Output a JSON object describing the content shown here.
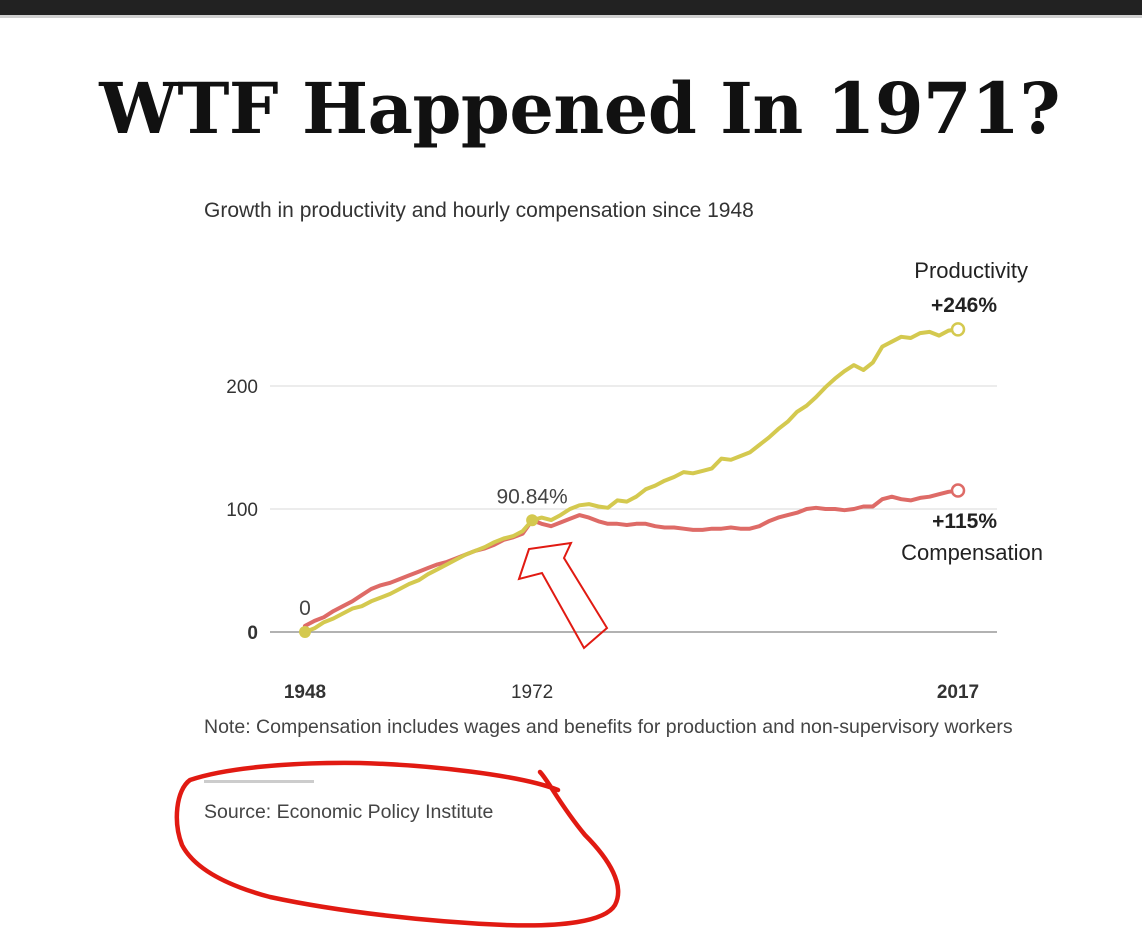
{
  "headline": "WTF Happened In 1971?",
  "note": "Note: Compensation includes wages and benefits for production and non-supervisory workers",
  "source": "Source: Economic Policy Institute",
  "colors": {
    "productivity": "#d4c94f",
    "compensation": "#de6b67",
    "annotation": "#e11a12",
    "gridline": "#d9d9d9",
    "baseline": "#999999"
  },
  "chart_data": {
    "type": "line",
    "title": "Growth in productivity and hourly compensation since 1948",
    "xlim": [
      1948,
      2017
    ],
    "ylim": [
      0,
      250
    ],
    "yticks": [
      {
        "value": 0,
        "label": "0",
        "bold": true
      },
      {
        "value": 100,
        "label": "100",
        "bold": false
      },
      {
        "value": 200,
        "label": "200",
        "bold": false
      }
    ],
    "xticks": [
      {
        "value": 1948,
        "label": "1948",
        "bold": true
      },
      {
        "value": 1972,
        "label": "1972",
        "bold": false
      },
      {
        "value": 2017,
        "label": "2017",
        "bold": true
      }
    ],
    "grid": true,
    "series": [
      {
        "name": "Productivity",
        "end_label": "+246%",
        "color": "#d4c94f",
        "x": [
          1948,
          1949,
          1950,
          1951,
          1952,
          1953,
          1954,
          1955,
          1956,
          1957,
          1958,
          1959,
          1960,
          1961,
          1962,
          1963,
          1964,
          1965,
          1966,
          1967,
          1968,
          1969,
          1970,
          1971,
          1972,
          1973,
          1974,
          1975,
          1976,
          1977,
          1978,
          1979,
          1980,
          1981,
          1982,
          1983,
          1984,
          1985,
          1986,
          1987,
          1988,
          1989,
          1990,
          1991,
          1992,
          1993,
          1994,
          1995,
          1996,
          1997,
          1998,
          1999,
          2000,
          2001,
          2002,
          2003,
          2004,
          2005,
          2006,
          2007,
          2008,
          2009,
          2010,
          2011,
          2012,
          2013,
          2014,
          2015,
          2016,
          2017
        ],
        "values": [
          0,
          3,
          8,
          11,
          15,
          19,
          21,
          25,
          28,
          31,
          35,
          39,
          42,
          47,
          51,
          55,
          59,
          63,
          66,
          69,
          73,
          76,
          78,
          82,
          90.84,
          93,
          91,
          95,
          100,
          103,
          104,
          102,
          101,
          107,
          106,
          110,
          116,
          119,
          123,
          126,
          130,
          129,
          131,
          133,
          141,
          140,
          143,
          146,
          152,
          158,
          165,
          171,
          179,
          184,
          191,
          199,
          206,
          212,
          217,
          213,
          219,
          232,
          236,
          240,
          239,
          243,
          244,
          241,
          245,
          246
        ]
      },
      {
        "name": "Compensation",
        "end_label": "+115%",
        "color": "#de6b67",
        "x": [
          1948,
          1949,
          1950,
          1951,
          1952,
          1953,
          1954,
          1955,
          1956,
          1957,
          1958,
          1959,
          1960,
          1961,
          1962,
          1963,
          1964,
          1965,
          1966,
          1967,
          1968,
          1969,
          1970,
          1971,
          1972,
          1973,
          1974,
          1975,
          1976,
          1977,
          1978,
          1979,
          1980,
          1981,
          1982,
          1983,
          1984,
          1985,
          1986,
          1987,
          1988,
          1989,
          1990,
          1991,
          1992,
          1993,
          1994,
          1995,
          1996,
          1997,
          1998,
          1999,
          2000,
          2001,
          2002,
          2003,
          2004,
          2005,
          2006,
          2007,
          2008,
          2009,
          2010,
          2011,
          2012,
          2013,
          2014,
          2015,
          2016,
          2017
        ],
        "values": [
          5,
          9,
          12,
          17,
          21,
          25,
          30,
          35,
          38,
          40,
          43,
          46,
          49,
          52,
          55,
          57,
          60,
          63,
          66,
          68,
          71,
          75,
          77,
          80,
          90.84,
          88,
          86,
          89,
          92,
          95,
          93,
          90,
          88,
          88,
          87,
          88,
          88,
          86,
          85,
          85,
          84,
          83,
          83,
          84,
          84,
          85,
          84,
          84,
          86,
          90,
          93,
          95,
          97,
          100,
          101,
          100,
          100,
          99,
          100,
          102,
          102,
          108,
          110,
          108,
          107,
          109,
          110,
          112,
          114,
          115
        ]
      }
    ],
    "annotations": [
      {
        "year": 1948,
        "value": 0,
        "label": "0"
      },
      {
        "year": 1972,
        "value": 90.84,
        "label": "90.84%"
      }
    ]
  }
}
